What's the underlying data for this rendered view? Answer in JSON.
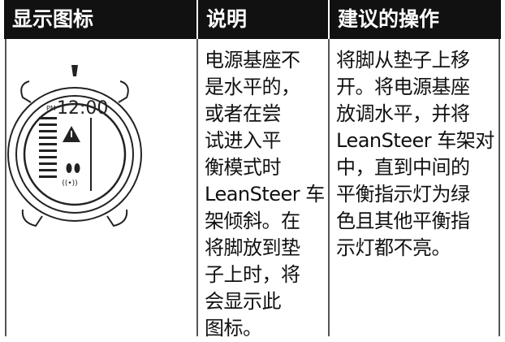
{
  "table": {
    "header": [
      "显示图标",
      "说明",
      "建议的操作"
    ],
    "icon": {
      "am_pm": "PM",
      "time": "12:00"
    },
    "description_lines": [
      "电源基座不",
      "是水平的，",
      "或者在尝",
      "试进入平",
      "衡模式时",
      "LeanSteer 车",
      "架倾斜。在",
      "将脚放到垫",
      "子上时，将",
      "会显示此",
      "图标。"
    ],
    "action_lines": [
      "将脚从垫子上移",
      "开。将电源基座",
      "放调水平，并将",
      "LeanSteer 车架对",
      "中，直到中间的",
      "平衡指示灯为绿",
      "色且其他平衡指",
      "示灯都不亮。"
    ]
  }
}
